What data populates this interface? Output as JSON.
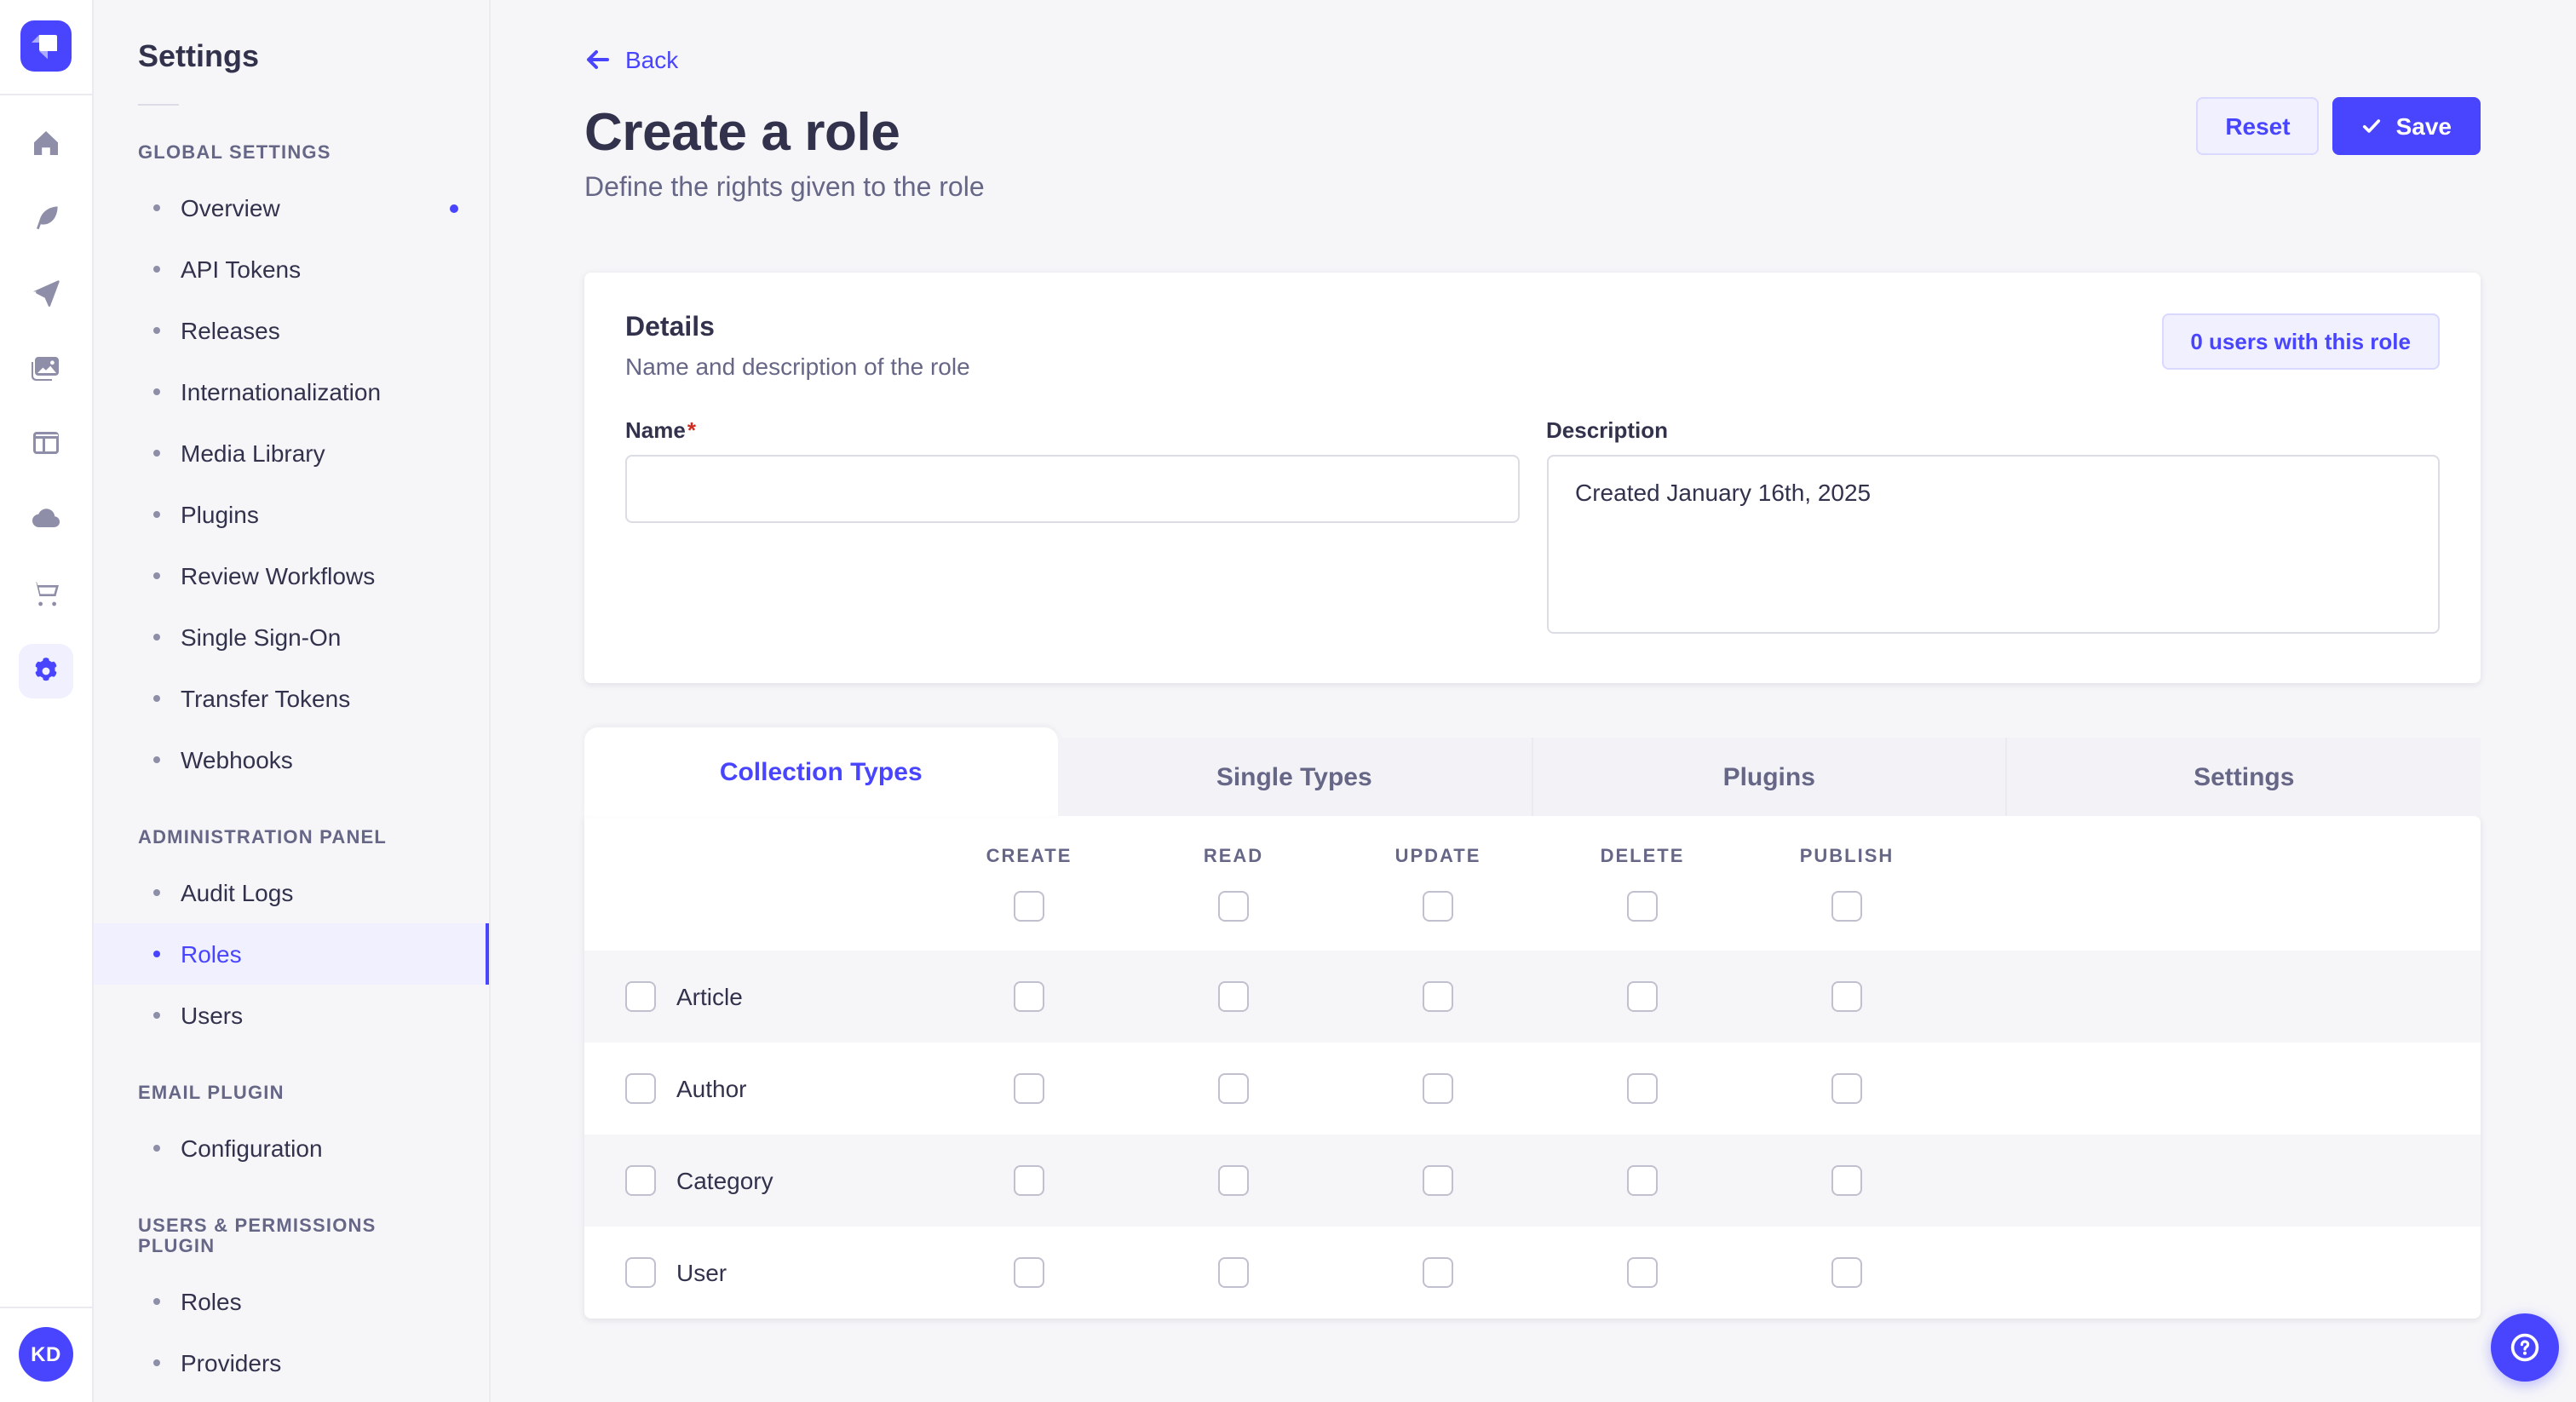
{
  "colors": {
    "accent": "#4945ff",
    "accent_light_bg": "#f0f0ff",
    "text_dark": "#32324d",
    "text_muted": "#666687",
    "page_bg": "#f6f6f9",
    "required_marker_color": "#d02b20"
  },
  "rail": {
    "icons": [
      {
        "name": "home",
        "active": false
      },
      {
        "name": "quill",
        "active": false
      },
      {
        "name": "paper-plane",
        "active": false
      },
      {
        "name": "media",
        "active": false
      },
      {
        "name": "layout",
        "active": false
      },
      {
        "name": "cloud",
        "active": false
      },
      {
        "name": "cart",
        "active": false
      },
      {
        "name": "gear",
        "active": true
      }
    ],
    "avatar_initials": "KD"
  },
  "sidebar": {
    "title": "Settings",
    "sections": [
      {
        "label": "GLOBAL SETTINGS",
        "items": [
          {
            "label": "Overview",
            "active": false,
            "notification": true
          },
          {
            "label": "API Tokens",
            "active": false,
            "notification": false
          },
          {
            "label": "Releases",
            "active": false,
            "notification": false
          },
          {
            "label": "Internationalization",
            "active": false,
            "notification": false
          },
          {
            "label": "Media Library",
            "active": false,
            "notification": false
          },
          {
            "label": "Plugins",
            "active": false,
            "notification": false
          },
          {
            "label": "Review Workflows",
            "active": false,
            "notification": false
          },
          {
            "label": "Single Sign-On",
            "active": false,
            "notification": false
          },
          {
            "label": "Transfer Tokens",
            "active": false,
            "notification": false
          },
          {
            "label": "Webhooks",
            "active": false,
            "notification": false
          }
        ]
      },
      {
        "label": "ADMINISTRATION PANEL",
        "items": [
          {
            "label": "Audit Logs",
            "active": false,
            "notification": false
          },
          {
            "label": "Roles",
            "active": true,
            "notification": false
          },
          {
            "label": "Users",
            "active": false,
            "notification": false
          }
        ]
      },
      {
        "label": "EMAIL PLUGIN",
        "items": [
          {
            "label": "Configuration",
            "active": false,
            "notification": false
          }
        ]
      },
      {
        "label": "USERS & PERMISSIONS PLUGIN",
        "items": [
          {
            "label": "Roles",
            "active": false,
            "notification": false
          },
          {
            "label": "Providers",
            "active": false,
            "notification": false
          }
        ]
      }
    ]
  },
  "header": {
    "back_label": "Back",
    "title": "Create a role",
    "subtitle": "Define the rights given to the role",
    "reset_label": "Reset",
    "save_label": "Save"
  },
  "details": {
    "title": "Details",
    "subtitle": "Name and description of the role",
    "users_button": "0 users with this role",
    "name_label": "Name",
    "required_marker": "*",
    "name_value": "",
    "description_label": "Description",
    "description_value": "Created January 16th, 2025"
  },
  "permissions": {
    "tabs": [
      {
        "label": "Collection Types",
        "active": true
      },
      {
        "label": "Single Types",
        "active": false
      },
      {
        "label": "Plugins",
        "active": false
      },
      {
        "label": "Settings",
        "active": false
      }
    ],
    "columns": [
      "CREATE",
      "READ",
      "UPDATE",
      "DELETE",
      "PUBLISH"
    ],
    "rows": [
      {
        "label": "Article"
      },
      {
        "label": "Author"
      },
      {
        "label": "Category"
      },
      {
        "label": "User"
      }
    ]
  }
}
